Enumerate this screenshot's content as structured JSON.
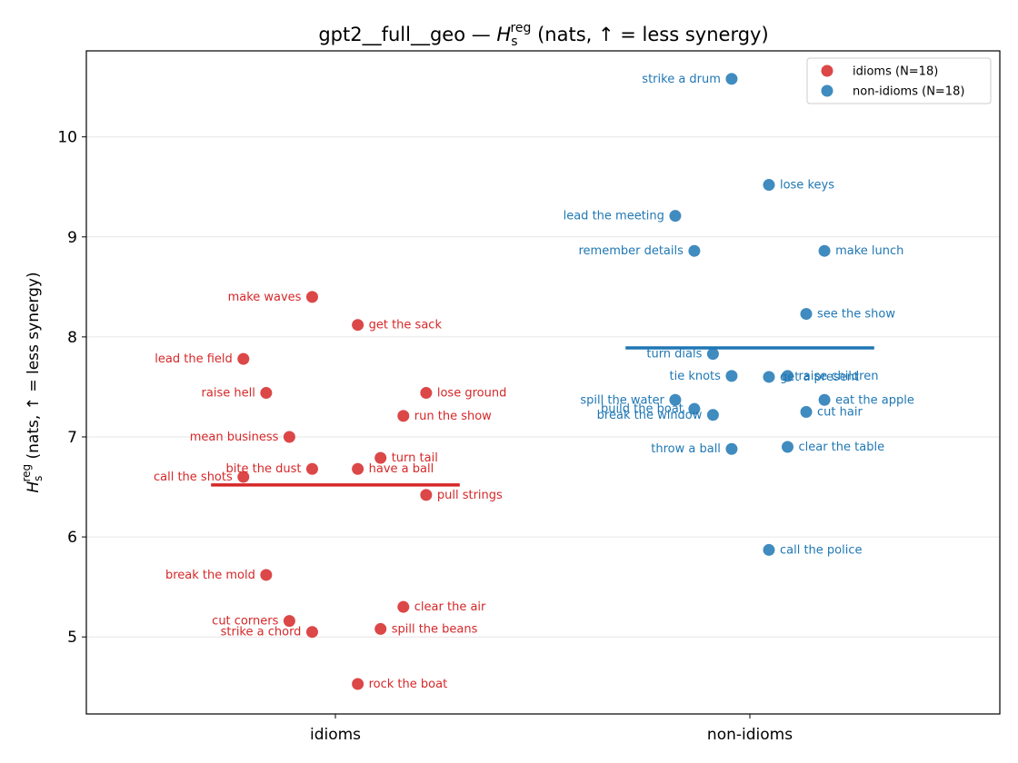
{
  "chart_data": {
    "type": "scatter",
    "title_main": "gpt2__full__geo — ",
    "title_sym": "H",
    "title_sub": "s",
    "title_sup": "reg",
    "title_tail": " (nats, ↑ = less synergy)",
    "ylabel_sym": "H",
    "ylabel_sub": "s",
    "ylabel_sup": "reg",
    "ylabel_tail": " (nats, ↑ = less synergy)",
    "categories": [
      "idioms",
      "non-idioms"
    ],
    "ylim": [
      4.23,
      10.86
    ],
    "yticks": [
      5,
      6,
      7,
      8,
      9,
      10
    ],
    "grid": "horizontal",
    "legend_position": "top-right",
    "legend": [
      "idioms (N=18)",
      "non-idioms (N=18)"
    ],
    "colors": {
      "idioms": "#d62728",
      "non-idioms": "#1f77b4"
    },
    "series": [
      {
        "name": "idioms (N=18)",
        "category": "idioms",
        "mean": 6.52,
        "points": [
          {
            "label": "make waves",
            "jitter": -0.056,
            "y": 8.4,
            "side": "left"
          },
          {
            "label": "get the sack",
            "jitter": 0.054,
            "y": 8.12,
            "side": "right"
          },
          {
            "label": "lead the field",
            "jitter": -0.222,
            "y": 7.78,
            "side": "left"
          },
          {
            "label": "raise hell",
            "jitter": -0.167,
            "y": 7.44,
            "side": "left"
          },
          {
            "label": "lose ground",
            "jitter": 0.219,
            "y": 7.44,
            "side": "right"
          },
          {
            "label": "run the show",
            "jitter": 0.164,
            "y": 7.21,
            "side": "right"
          },
          {
            "label": "mean business",
            "jitter": -0.111,
            "y": 7.0,
            "side": "left"
          },
          {
            "label": "turn tail",
            "jitter": 0.109,
            "y": 6.79,
            "side": "right"
          },
          {
            "label": "bite the dust",
            "jitter": -0.056,
            "y": 6.68,
            "side": "left"
          },
          {
            "label": "have a ball",
            "jitter": 0.054,
            "y": 6.68,
            "side": "right"
          },
          {
            "label": "call the shots",
            "jitter": -0.222,
            "y": 6.6,
            "side": "left"
          },
          {
            "label": "pull strings",
            "jitter": 0.219,
            "y": 6.42,
            "side": "right"
          },
          {
            "label": "break the mold",
            "jitter": -0.167,
            "y": 5.62,
            "side": "left"
          },
          {
            "label": "clear the air",
            "jitter": 0.164,
            "y": 5.3,
            "side": "right"
          },
          {
            "label": "cut corners",
            "jitter": -0.111,
            "y": 5.16,
            "side": "left"
          },
          {
            "label": "spill the beans",
            "jitter": 0.109,
            "y": 5.08,
            "side": "right"
          },
          {
            "label": "strike a chord",
            "jitter": -0.056,
            "y": 5.05,
            "side": "left"
          },
          {
            "label": "rock the boat",
            "jitter": 0.054,
            "y": 4.53,
            "side": "right"
          }
        ]
      },
      {
        "name": "non-idioms (N=18)",
        "category": "non-idioms",
        "mean": 7.89,
        "points": [
          {
            "label": "strike a drum",
            "jitter": -0.044,
            "y": 10.58,
            "side": "left"
          },
          {
            "label": "lose keys",
            "jitter": 0.046,
            "y": 9.52,
            "side": "right"
          },
          {
            "label": "lead the meeting",
            "jitter": -0.18,
            "y": 9.21,
            "side": "left"
          },
          {
            "label": "remember details",
            "jitter": -0.134,
            "y": 8.86,
            "side": "left"
          },
          {
            "label": "make lunch",
            "jitter": 0.18,
            "y": 8.86,
            "side": "right"
          },
          {
            "label": "see the show",
            "jitter": 0.136,
            "y": 8.23,
            "side": "right"
          },
          {
            "label": "turn dials",
            "jitter": -0.089,
            "y": 7.83,
            "side": "left"
          },
          {
            "label": "tie knots",
            "jitter": -0.044,
            "y": 7.61,
            "side": "left"
          },
          {
            "label": "get a present",
            "jitter": 0.046,
            "y": 7.6,
            "side": "right"
          },
          {
            "label": "raise children",
            "jitter": 0.091,
            "y": 7.61,
            "side": "right"
          },
          {
            "label": "spill the water",
            "jitter": -0.18,
            "y": 7.37,
            "side": "left"
          },
          {
            "label": "eat the apple",
            "jitter": 0.18,
            "y": 7.37,
            "side": "right"
          },
          {
            "label": "build the boat",
            "jitter": -0.134,
            "y": 7.28,
            "side": "left"
          },
          {
            "label": "cut hair",
            "jitter": 0.136,
            "y": 7.25,
            "side": "right"
          },
          {
            "label": "break the window",
            "jitter": -0.089,
            "y": 7.22,
            "side": "left"
          },
          {
            "label": "throw a ball",
            "jitter": -0.044,
            "y": 6.88,
            "side": "left"
          },
          {
            "label": "clear the table",
            "jitter": 0.091,
            "y": 6.9,
            "side": "right"
          },
          {
            "label": "call the police",
            "jitter": 0.046,
            "y": 5.87,
            "side": "right"
          }
        ]
      }
    ]
  }
}
